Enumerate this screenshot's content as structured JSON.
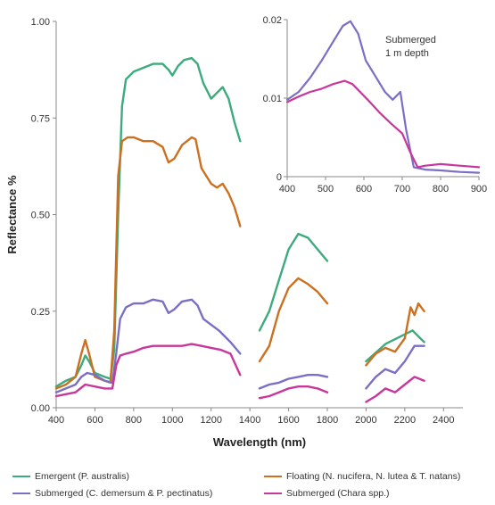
{
  "chart_data": [
    {
      "type": "line",
      "xlabel": "Wavelength (nm)",
      "ylabel": "Reflectance %",
      "xlim": [
        400,
        2500
      ],
      "ylim": [
        0,
        1.0
      ],
      "x_ticks": [
        "400",
        "600",
        "800",
        "1000",
        "1200",
        "1400",
        "1600",
        "1800",
        "2000",
        "2200",
        "2400"
      ],
      "y_ticks": [
        "0.00",
        "0.25",
        "0.50",
        "0.75",
        "1.00"
      ],
      "legend_placement": "bottom",
      "series": [
        {
          "name": "Emergent (P. australis)",
          "color": "#3dab7e",
          "segments": [
            [
              [
                400,
                0.055
              ],
              [
                450,
                0.07
              ],
              [
                500,
                0.08
              ],
              [
                530,
                0.11
              ],
              [
                550,
                0.135
              ],
              [
                570,
                0.12
              ],
              [
                600,
                0.09
              ],
              [
                650,
                0.08
              ],
              [
                680,
                0.075
              ],
              [
                700,
                0.15
              ],
              [
                720,
                0.5
              ],
              [
                740,
                0.78
              ],
              [
                760,
                0.85
              ],
              [
                800,
                0.87
              ],
              [
                850,
                0.88
              ],
              [
                900,
                0.89
              ],
              [
                950,
                0.89
              ],
              [
                980,
                0.875
              ],
              [
                1000,
                0.86
              ],
              [
                1030,
                0.885
              ],
              [
                1060,
                0.9
              ],
              [
                1100,
                0.905
              ],
              [
                1130,
                0.89
              ],
              [
                1160,
                0.84
              ],
              [
                1200,
                0.8
              ],
              [
                1240,
                0.82
              ],
              [
                1260,
                0.83
              ],
              [
                1290,
                0.8
              ],
              [
                1320,
                0.74
              ],
              [
                1350,
                0.69
              ]
            ],
            [
              [
                1450,
                0.2
              ],
              [
                1500,
                0.25
              ],
              [
                1550,
                0.33
              ],
              [
                1600,
                0.41
              ],
              [
                1650,
                0.45
              ],
              [
                1700,
                0.44
              ],
              [
                1750,
                0.41
              ],
              [
                1800,
                0.38
              ]
            ],
            [
              [
                2000,
                0.12
              ],
              [
                2100,
                0.165
              ],
              [
                2200,
                0.19
              ],
              [
                2240,
                0.2
              ],
              [
                2280,
                0.18
              ],
              [
                2300,
                0.17
              ]
            ]
          ]
        },
        {
          "name": "Floating (N. nucifera, N. lutea & T. natans)",
          "color": "#cc7020",
          "segments": [
            [
              [
                400,
                0.05
              ],
              [
                450,
                0.06
              ],
              [
                500,
                0.08
              ],
              [
                530,
                0.14
              ],
              [
                550,
                0.175
              ],
              [
                570,
                0.14
              ],
              [
                600,
                0.08
              ],
              [
                650,
                0.07
              ],
              [
                680,
                0.065
              ],
              [
                700,
                0.2
              ],
              [
                720,
                0.6
              ],
              [
                740,
                0.69
              ],
              [
                770,
                0.7
              ],
              [
                800,
                0.7
              ],
              [
                850,
                0.69
              ],
              [
                900,
                0.69
              ],
              [
                950,
                0.675
              ],
              [
                980,
                0.635
              ],
              [
                1010,
                0.645
              ],
              [
                1050,
                0.68
              ],
              [
                1100,
                0.7
              ],
              [
                1120,
                0.695
              ],
              [
                1150,
                0.62
              ],
              [
                1200,
                0.58
              ],
              [
                1230,
                0.57
              ],
              [
                1260,
                0.58
              ],
              [
                1290,
                0.555
              ],
              [
                1320,
                0.52
              ],
              [
                1350,
                0.47
              ]
            ],
            [
              [
                1450,
                0.12
              ],
              [
                1500,
                0.16
              ],
              [
                1550,
                0.25
              ],
              [
                1600,
                0.31
              ],
              [
                1650,
                0.335
              ],
              [
                1700,
                0.32
              ],
              [
                1750,
                0.3
              ],
              [
                1800,
                0.27
              ]
            ],
            [
              [
                2000,
                0.11
              ],
              [
                2050,
                0.14
              ],
              [
                2100,
                0.155
              ],
              [
                2150,
                0.145
              ],
              [
                2200,
                0.18
              ],
              [
                2230,
                0.26
              ],
              [
                2250,
                0.24
              ],
              [
                2270,
                0.27
              ],
              [
                2300,
                0.25
              ]
            ]
          ]
        },
        {
          "name": "Submerged (C. demersum & P. pectinatus)",
          "color": "#7a6fc4",
          "segments": [
            [
              [
                400,
                0.04
              ],
              [
                450,
                0.05
              ],
              [
                500,
                0.06
              ],
              [
                530,
                0.08
              ],
              [
                560,
                0.09
              ],
              [
                600,
                0.085
              ],
              [
                650,
                0.07
              ],
              [
                690,
                0.065
              ],
              [
                710,
                0.14
              ],
              [
                730,
                0.23
              ],
              [
                760,
                0.26
              ],
              [
                800,
                0.27
              ],
              [
                850,
                0.27
              ],
              [
                900,
                0.28
              ],
              [
                950,
                0.275
              ],
              [
                980,
                0.245
              ],
              [
                1010,
                0.255
              ],
              [
                1050,
                0.275
              ],
              [
                1100,
                0.28
              ],
              [
                1130,
                0.265
              ],
              [
                1160,
                0.23
              ],
              [
                1200,
                0.215
              ],
              [
                1240,
                0.2
              ],
              [
                1270,
                0.185
              ],
              [
                1300,
                0.17
              ],
              [
                1350,
                0.14
              ]
            ],
            [
              [
                1450,
                0.05
              ],
              [
                1500,
                0.06
              ],
              [
                1550,
                0.065
              ],
              [
                1600,
                0.075
              ],
              [
                1650,
                0.08
              ],
              [
                1700,
                0.085
              ],
              [
                1750,
                0.085
              ],
              [
                1800,
                0.08
              ]
            ],
            [
              [
                2000,
                0.05
              ],
              [
                2050,
                0.08
              ],
              [
                2100,
                0.1
              ],
              [
                2150,
                0.09
              ],
              [
                2200,
                0.12
              ],
              [
                2250,
                0.16
              ],
              [
                2300,
                0.16
              ]
            ]
          ]
        },
        {
          "name": "Submerged (Chara spp.)",
          "color": "#c8379a",
          "segments": [
            [
              [
                400,
                0.03
              ],
              [
                450,
                0.035
              ],
              [
                500,
                0.04
              ],
              [
                550,
                0.06
              ],
              [
                600,
                0.055
              ],
              [
                650,
                0.05
              ],
              [
                690,
                0.05
              ],
              [
                710,
                0.11
              ],
              [
                730,
                0.135
              ],
              [
                760,
                0.14
              ],
              [
                800,
                0.145
              ],
              [
                850,
                0.155
              ],
              [
                900,
                0.16
              ],
              [
                950,
                0.16
              ],
              [
                1000,
                0.16
              ],
              [
                1050,
                0.16
              ],
              [
                1100,
                0.165
              ],
              [
                1150,
                0.16
              ],
              [
                1200,
                0.155
              ],
              [
                1250,
                0.15
              ],
              [
                1300,
                0.14
              ],
              [
                1350,
                0.085
              ]
            ],
            [
              [
                1450,
                0.025
              ],
              [
                1500,
                0.03
              ],
              [
                1550,
                0.04
              ],
              [
                1600,
                0.05
              ],
              [
                1650,
                0.055
              ],
              [
                1700,
                0.055
              ],
              [
                1750,
                0.05
              ],
              [
                1800,
                0.04
              ]
            ],
            [
              [
                2000,
                0.015
              ],
              [
                2050,
                0.03
              ],
              [
                2100,
                0.05
              ],
              [
                2150,
                0.04
              ],
              [
                2200,
                0.06
              ],
              [
                2250,
                0.08
              ],
              [
                2300,
                0.07
              ]
            ]
          ]
        }
      ]
    },
    {
      "type": "line",
      "title": "Submerged\n1 m depth",
      "title_lines": [
        "Submerged",
        "1 m depth"
      ],
      "xlim": [
        400,
        900
      ],
      "ylim": [
        0,
        0.02
      ],
      "x_ticks": [
        "400",
        "500",
        "600",
        "700",
        "800",
        "900"
      ],
      "y_ticks": [
        "0",
        "0.01",
        "0.02"
      ],
      "series": [
        {
          "name": "Submerged (C. demersum & P. pectinatus)",
          "color": "#7a6fc4",
          "x": [
            400,
            430,
            460,
            490,
            520,
            545,
            565,
            585,
            605,
            630,
            655,
            675,
            695,
            710,
            730,
            760,
            800,
            850,
            900
          ],
          "y": [
            0.0098,
            0.0108,
            0.0126,
            0.0148,
            0.0172,
            0.0192,
            0.0198,
            0.0182,
            0.0148,
            0.0128,
            0.0108,
            0.0098,
            0.0108,
            0.006,
            0.0012,
            0.0009,
            0.0008,
            0.0006,
            0.0005
          ]
        },
        {
          "name": "Submerged (Chara spp.)",
          "color": "#c8379a",
          "x": [
            400,
            430,
            460,
            490,
            520,
            550,
            570,
            590,
            610,
            640,
            670,
            700,
            720,
            740,
            760,
            800,
            850,
            900
          ],
          "y": [
            0.0095,
            0.0102,
            0.0108,
            0.0112,
            0.0118,
            0.0122,
            0.0118,
            0.0108,
            0.0098,
            0.0082,
            0.0068,
            0.0055,
            0.0032,
            0.0012,
            0.0014,
            0.0016,
            0.0014,
            0.0012
          ]
        }
      ]
    }
  ]
}
